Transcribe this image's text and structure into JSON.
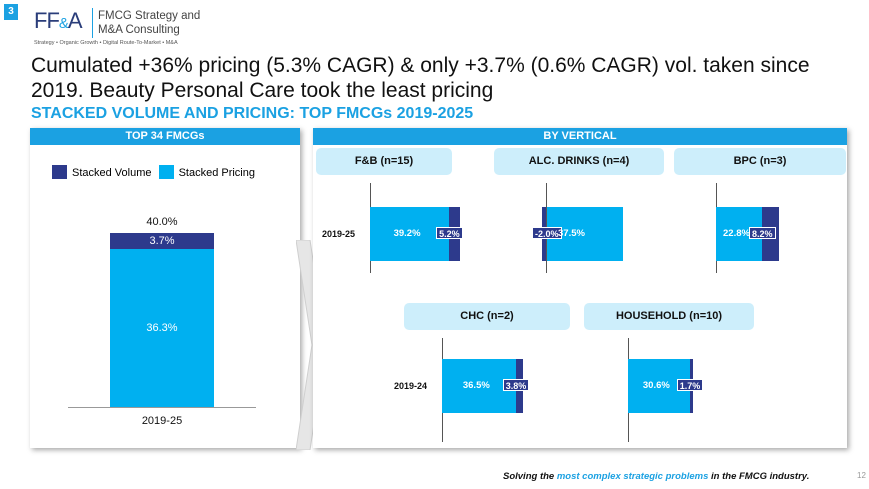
{
  "slide_number": "3",
  "logo": {
    "mark_ff": "FF",
    "mark_amp": "&",
    "mark_a": "A",
    "name_line1": "FMCG Strategy and",
    "name_line2": "M&A Consulting",
    "tagline": "Strategy • Organic Growth • Digital Route-To-Market • M&A"
  },
  "headline": "Cumulated +36% pricing (5.3% CAGR) & only +3.7% (0.6% CAGR) vol. taken since 2019. Beauty Personal Care took the least pricing",
  "subhead": "STACKED VOLUME AND PRICING: TOP FMCGs 2019-2025",
  "left_panel": {
    "header": "TOP 34 FMCGs"
  },
  "right_panel": {
    "header": "BY VERTICAL"
  },
  "legend": {
    "volume": "Stacked Volume",
    "pricing": "Stacked Pricing"
  },
  "colors": {
    "volume": "#2d3a8c",
    "pricing": "#00b0f0",
    "accent": "#1ba1e2",
    "pill": "#cdeefb"
  },
  "chart_data": [
    {
      "type": "bar",
      "stacked": true,
      "categories": [
        "2019-25"
      ],
      "series": [
        {
          "name": "Stacked Pricing",
          "values": [
            36.3
          ],
          "labels": [
            "36.3%"
          ]
        },
        {
          "name": "Stacked Volume",
          "values": [
            3.7
          ],
          "labels": [
            "3.7%"
          ]
        }
      ],
      "total_label": "40.0%",
      "ylim": [
        0,
        45
      ]
    },
    {
      "type": "bar",
      "orientation": "horizontal",
      "stacked": true,
      "panel": "F&B (n=15)",
      "categories": [
        "2019-25"
      ],
      "series": [
        {
          "name": "Stacked Pricing",
          "values": [
            39.2
          ],
          "labels": [
            "39.2%"
          ]
        },
        {
          "name": "Stacked Volume",
          "values": [
            5.2
          ],
          "labels": [
            "5.2%"
          ]
        }
      ]
    },
    {
      "type": "bar",
      "orientation": "horizontal",
      "stacked": true,
      "panel": "ALC. DRINKS (n=4)",
      "categories": [
        "2019-25"
      ],
      "series": [
        {
          "name": "Stacked Pricing",
          "values": [
            37.5
          ],
          "labels": [
            "37.5%"
          ]
        },
        {
          "name": "Stacked Volume",
          "values": [
            -2.0
          ],
          "labels": [
            "-2.0%"
          ]
        }
      ]
    },
    {
      "type": "bar",
      "orientation": "horizontal",
      "stacked": true,
      "panel": "BPC (n=3)",
      "categories": [
        "2019-25"
      ],
      "series": [
        {
          "name": "Stacked Pricing",
          "values": [
            22.8
          ],
          "labels": [
            "22.8%"
          ]
        },
        {
          "name": "Stacked Volume",
          "values": [
            8.2
          ],
          "labels": [
            "8.2%"
          ]
        }
      ]
    },
    {
      "type": "bar",
      "orientation": "horizontal",
      "stacked": true,
      "panel": "CHC (n=2)",
      "categories": [
        "2019-24"
      ],
      "series": [
        {
          "name": "Stacked Pricing",
          "values": [
            36.5
          ],
          "labels": [
            "36.5%"
          ]
        },
        {
          "name": "Stacked Volume",
          "values": [
            3.8
          ],
          "labels": [
            "3.8%"
          ]
        }
      ]
    },
    {
      "type": "bar",
      "orientation": "horizontal",
      "stacked": true,
      "panel": "HOUSEHOLD (n=10)",
      "categories": [
        "2019-24"
      ],
      "series": [
        {
          "name": "Stacked Pricing",
          "values": [
            30.6
          ],
          "labels": [
            "30.6%"
          ]
        },
        {
          "name": "Stacked Volume",
          "values": [
            1.7
          ],
          "labels": [
            "1.7%"
          ]
        }
      ]
    }
  ],
  "footer": {
    "pre": "Solving the ",
    "highlight": "most complex strategic problems",
    "post": " in the FMCG industry."
  },
  "page_number": "12"
}
